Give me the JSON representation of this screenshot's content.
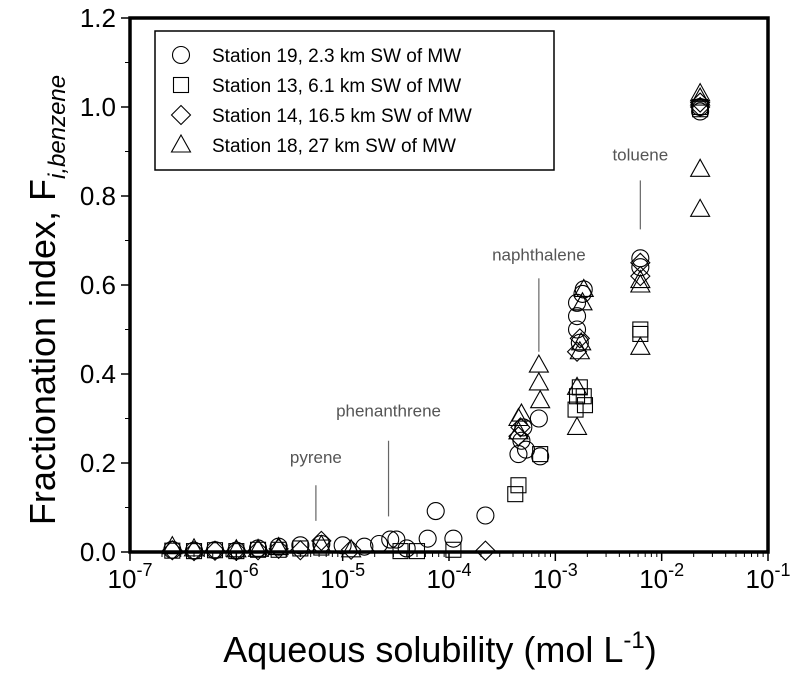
{
  "chart_data": {
    "type": "scatter",
    "xscale": "log",
    "xlim": [
      1e-07,
      0.1
    ],
    "ylim": [
      0,
      1.2
    ],
    "xtick_labels": [
      {
        "base": "10",
        "exp": "-7",
        "value": 1e-07
      },
      {
        "base": "10",
        "exp": "-6",
        "value": 1e-06
      },
      {
        "base": "10",
        "exp": "-5",
        "value": 1e-05
      },
      {
        "base": "10",
        "exp": "-4",
        "value": 0.0001
      },
      {
        "base": "10",
        "exp": "-3",
        "value": 0.001
      },
      {
        "base": "10",
        "exp": "-2",
        "value": 0.01
      },
      {
        "base": "10",
        "exp": "-1",
        "value": 0.1
      }
    ],
    "ytick_labels": [
      "0.0",
      "0.2",
      "0.4",
      "0.6",
      "0.8",
      "1.0",
      "1.2"
    ],
    "yticks": [
      0,
      0.2,
      0.4,
      0.6,
      0.8,
      1.0,
      1.2
    ],
    "xlabel": {
      "main": "Aqueous solubility (mol L",
      "sup": "-1",
      "close": ")"
    },
    "ylabel": {
      "main": "Fractionation index, F",
      "sub": "i,benzene"
    },
    "grid": false,
    "legend": "top-left",
    "series": [
      {
        "name": "Station 19, 2.3 km SW of MW",
        "marker": "circle",
        "points": [
          [
            2.5e-07,
            0.005
          ],
          [
            4e-07,
            0.003
          ],
          [
            6.3e-07,
            0.004
          ],
          [
            1e-06,
            0.003
          ],
          [
            1.6e-06,
            0.008
          ],
          [
            2.5e-06,
            0.012
          ],
          [
            4e-06,
            0.015
          ],
          [
            6.3e-06,
            0.018
          ],
          [
            1e-05,
            0.015
          ],
          [
            1.6e-05,
            0.012
          ],
          [
            2.2e-05,
            0.018
          ],
          [
            2.8e-05,
            0.028
          ],
          [
            3.2e-05,
            0.028
          ],
          [
            4e-05,
            0.008
          ],
          [
            6.3e-05,
            0.03
          ],
          [
            7.5e-05,
            0.092
          ],
          [
            0.00011,
            0.03
          ],
          [
            0.00022,
            0.082
          ],
          [
            0.00045,
            0.22
          ],
          [
            0.00048,
            0.25
          ],
          [
            0.0005,
            0.28
          ],
          [
            0.00053,
            0.23
          ],
          [
            0.0007,
            0.3
          ],
          [
            0.00072,
            0.215
          ],
          [
            0.0016,
            0.5
          ],
          [
            0.0016,
            0.53
          ],
          [
            0.0016,
            0.56
          ],
          [
            0.0017,
            0.47
          ],
          [
            0.0018,
            0.58
          ],
          [
            0.00185,
            0.59
          ],
          [
            0.0063,
            0.64
          ],
          [
            0.0063,
            0.66
          ],
          [
            0.023,
            1.0
          ],
          [
            0.023,
            0.99
          ]
        ]
      },
      {
        "name": "Station 13, 6.1 km SW of MW",
        "marker": "square",
        "points": [
          [
            2.5e-07,
            0.003
          ],
          [
            4e-07,
            0.002
          ],
          [
            6.3e-07,
            0.004
          ],
          [
            1e-06,
            0.002
          ],
          [
            1.6e-06,
            0.005
          ],
          [
            2.5e-06,
            0.005
          ],
          [
            4e-06,
            0.008
          ],
          [
            6.3e-06,
            0.01
          ],
          [
            3.5e-05,
            0.002
          ],
          [
            5e-05,
            0.002
          ],
          [
            0.00011,
            0.005
          ],
          [
            0.00042,
            0.13
          ],
          [
            0.00045,
            0.15
          ],
          [
            0.00072,
            0.22
          ],
          [
            0.00155,
            0.32
          ],
          [
            0.0016,
            0.35
          ],
          [
            0.0017,
            0.37
          ],
          [
            0.00185,
            0.35
          ],
          [
            0.0019,
            0.33
          ],
          [
            0.0063,
            0.49
          ],
          [
            0.0063,
            0.5
          ],
          [
            0.023,
            1.0
          ],
          [
            0.023,
            0.995
          ]
        ]
      },
      {
        "name": "Station 14, 16.5 km SW of MW",
        "marker": "diamond",
        "points": [
          [
            2.5e-07,
            0.004
          ],
          [
            4e-07,
            0.002
          ],
          [
            6.3e-07,
            0.003
          ],
          [
            1e-06,
            0.003
          ],
          [
            1.6e-06,
            0.004
          ],
          [
            2.5e-06,
            0.007
          ],
          [
            4e-06,
            0.004
          ],
          [
            6.3e-06,
            0.025
          ],
          [
            1.2e-05,
            0.005
          ],
          [
            0.00022,
            0.003
          ],
          [
            0.00045,
            0.26
          ],
          [
            0.00047,
            0.28
          ],
          [
            0.0016,
            0.45
          ],
          [
            0.0017,
            0.48
          ],
          [
            0.0063,
            0.62
          ],
          [
            0.0063,
            0.65
          ],
          [
            0.023,
            1.01
          ],
          [
            0.023,
            1.0
          ]
        ]
      },
      {
        "name": "Station 18, 27 km SW of MW",
        "marker": "triangle",
        "points": [
          [
            2.5e-07,
            0.012
          ],
          [
            4e-07,
            0.007
          ],
          [
            1e-06,
            0.005
          ],
          [
            1.6e-06,
            0.006
          ],
          [
            2.5e-06,
            0.01
          ],
          [
            6.3e-06,
            0.015
          ],
          [
            1.2e-05,
            0.005
          ],
          [
            0.00045,
            0.3
          ],
          [
            0.00045,
            0.27
          ],
          [
            0.00048,
            0.31
          ],
          [
            0.0007,
            0.42
          ],
          [
            0.0007,
            0.38
          ],
          [
            0.00072,
            0.34
          ],
          [
            0.0016,
            0.37
          ],
          [
            0.0016,
            0.28
          ],
          [
            0.0017,
            0.45
          ],
          [
            0.00175,
            0.47
          ],
          [
            0.0018,
            0.56
          ],
          [
            0.00185,
            0.59
          ],
          [
            0.0063,
            0.46
          ],
          [
            0.0063,
            0.61
          ],
          [
            0.0063,
            0.6
          ],
          [
            0.023,
            1.02
          ],
          [
            0.023,
            1.03
          ],
          [
            0.023,
            0.86
          ],
          [
            0.023,
            0.77
          ]
        ]
      }
    ],
    "annotations": [
      {
        "text": "pyrene",
        "x": 5.6e-06,
        "y_text": 0.2,
        "y_line_top": 0.15,
        "y_line_bottom": 0.07
      },
      {
        "text": "phenanthrene",
        "x": 2.7e-05,
        "y_text": 0.305,
        "y_line_top": 0.25,
        "y_line_bottom": 0.08
      },
      {
        "text": "naphthalene",
        "x": 0.0007,
        "y_text": 0.655,
        "y_line_top": 0.615,
        "y_line_bottom": 0.45
      },
      {
        "text": "toluene",
        "x": 0.0063,
        "y_text": 0.88,
        "y_line_top": 0.835,
        "y_line_bottom": 0.725
      }
    ]
  }
}
